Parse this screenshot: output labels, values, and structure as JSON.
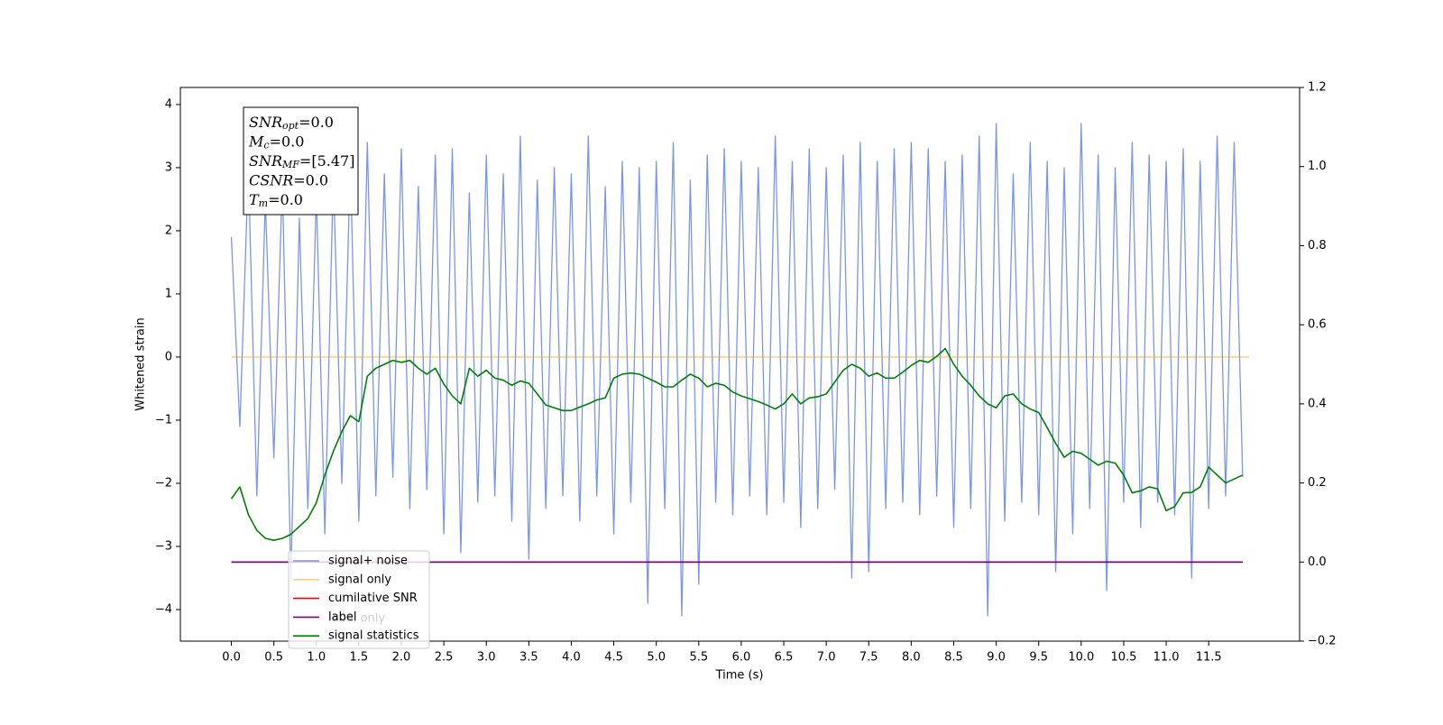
{
  "chart_data": {
    "type": "line",
    "x_label": "Time (s)",
    "y_label": "Whitened strain",
    "xlim": [
      -0.6,
      12.57
    ],
    "ylim": [
      -4.5,
      4.27
    ],
    "y2lim": [
      -0.2,
      1.2
    ],
    "xticks": [
      {
        "value": 0,
        "label": "0.0"
      },
      0.5,
      {
        "value": 1,
        "label": "1.0"
      },
      1.5,
      {
        "value": 2,
        "label": "2.0"
      },
      2.5,
      {
        "value": 3,
        "label": "3.0"
      },
      3.5,
      {
        "value": 4,
        "label": "4.0"
      },
      4.5,
      {
        "value": 5,
        "label": "5.0"
      },
      5.5,
      {
        "value": 6,
        "label": "6.0"
      },
      6.5,
      {
        "value": 7,
        "label": "7.0"
      },
      7.5,
      {
        "value": 8,
        "label": "8.0"
      },
      8.5,
      {
        "value": 9,
        "label": "9.0"
      },
      9.5,
      {
        "value": 10,
        "label": "10.0"
      },
      10.5,
      {
        "value": 11,
        "label": "11.0"
      },
      11.5
    ],
    "yticks": [
      {
        "value": -4,
        "label": "−4"
      },
      {
        "value": -3,
        "label": "−3"
      },
      {
        "value": -2,
        "label": "−2"
      },
      {
        "value": -1,
        "label": "−1"
      },
      0,
      1,
      2,
      3,
      4
    ],
    "y2ticks": [
      {
        "value": -0.2,
        "label": "−0.2"
      },
      {
        "value": 0,
        "label": "0.0"
      },
      0.2,
      0.4,
      0.6,
      0.8,
      {
        "value": 1,
        "label": "1.0"
      },
      1.2
    ],
    "grid": false,
    "legend_loc": "lower left",
    "x": [
      0,
      0.1,
      0.2,
      0.3,
      0.4,
      0.5,
      0.6,
      0.7,
      0.8,
      0.9,
      1,
      1.1,
      1.2,
      1.3,
      1.4,
      1.5,
      1.6,
      1.7,
      1.8,
      1.9,
      2,
      2.1,
      2.2,
      2.3,
      2.4,
      2.5,
      2.6,
      2.7,
      2.8,
      2.9,
      3,
      3.1,
      3.2,
      3.3,
      3.4,
      3.5,
      3.6,
      3.7,
      3.8,
      3.9,
      4,
      4.1,
      4.2,
      4.3,
      4.4,
      4.5,
      4.6,
      4.7,
      4.8,
      4.9,
      5,
      5.1,
      5.2,
      5.3,
      5.4,
      5.5,
      5.6,
      5.7,
      5.8,
      5.9,
      6,
      6.1,
      6.2,
      6.3,
      6.4,
      6.5,
      6.6,
      6.7,
      6.8,
      6.9,
      7,
      7.1,
      7.2,
      7.3,
      7.4,
      7.5,
      7.6,
      7.7,
      7.8,
      7.9,
      8,
      8.1,
      8.2,
      8.3,
      8.4,
      8.5,
      8.6,
      8.7,
      8.8,
      8.9,
      9,
      9.1,
      9.2,
      9.3,
      9.4,
      9.5,
      9.6,
      9.7,
      9.8,
      9.9,
      10,
      10.1,
      10.2,
      10.3,
      10.4,
      10.5,
      10.6,
      10.7,
      10.8,
      10.9,
      11,
      11.1,
      11.2,
      11.3,
      11.4,
      11.5,
      11.6,
      11.7,
      11.8,
      11.9
    ],
    "series": [
      {
        "name": "signal+ noise",
        "color": "#4169e1",
        "alpha": 0.7,
        "axis": "y",
        "values": [
          1.9,
          -1.1,
          3.0,
          -2.2,
          2.5,
          -1.6,
          2.8,
          -3.5,
          2.2,
          -2.4,
          2.6,
          -2.8,
          2.9,
          -2.0,
          3.1,
          -2.6,
          3.4,
          -2.2,
          2.9,
          -1.9,
          3.3,
          -2.4,
          2.7,
          -2.1,
          3.2,
          -2.8,
          3.3,
          -3.1,
          2.6,
          -2.3,
          3.2,
          -2.2,
          2.9,
          -2.6,
          3.5,
          -3.2,
          2.8,
          -2.4,
          3.0,
          -2.2,
          2.9,
          -2.6,
          3.5,
          -2.2,
          2.7,
          -2.8,
          3.1,
          -2.3,
          3.0,
          -3.9,
          3.1,
          -2.4,
          3.4,
          -4.1,
          2.8,
          -3.6,
          3.2,
          -2.3,
          3.3,
          -2.5,
          3.1,
          -2.2,
          3.0,
          -2.5,
          3.5,
          -2.3,
          3.1,
          -2.7,
          3.3,
          -2.4,
          3.0,
          -2.1,
          3.2,
          -3.5,
          3.4,
          -3.4,
          3.1,
          -2.4,
          3.3,
          -2.3,
          3.4,
          -2.5,
          3.3,
          -2.2,
          3.1,
          -2.7,
          3.2,
          -2.4,
          3.5,
          -4.1,
          3.7,
          -2.6,
          2.9,
          -2.3,
          3.4,
          -2.5,
          3.1,
          -3.4,
          3.0,
          -2.8,
          3.7,
          -2.4,
          3.2,
          -3.7,
          3.0,
          -2.3,
          3.4,
          -2.7,
          3.2,
          -2.3,
          3.1,
          -2.5,
          3.3,
          -3.5,
          3.1,
          -2.4,
          3.5,
          -2.2,
          3.4,
          -1.9
        ]
      },
      {
        "name": "signal only",
        "color": "#ffa500",
        "alpha": 0.5,
        "axis": "y",
        "x": [
          0,
          11.98
        ],
        "values": [
          0,
          0
        ]
      },
      {
        "name": "cumilative SNR",
        "color": "#ff0000",
        "alpha": 1,
        "axis": "y2",
        "x": [
          0,
          11.9
        ],
        "values": [
          0,
          0
        ]
      },
      {
        "name": "label",
        "color": "#800080",
        "alpha": 1,
        "axis": "y2",
        "x": [
          0,
          11.9
        ],
        "values": [
          0,
          0
        ]
      },
      {
        "name": "signal statistics",
        "color": "#008000",
        "alpha": 1,
        "axis": "y2",
        "values": [
          0.16,
          0.19,
          0.12,
          0.08,
          0.06,
          0.055,
          0.06,
          0.07,
          0.09,
          0.11,
          0.15,
          0.22,
          0.28,
          0.33,
          0.37,
          0.355,
          0.47,
          0.49,
          0.5,
          0.51,
          0.505,
          0.51,
          0.49,
          0.475,
          0.49,
          0.45,
          0.42,
          0.4,
          0.49,
          0.47,
          0.485,
          0.465,
          0.46,
          0.447,
          0.458,
          0.452,
          0.425,
          0.397,
          0.39,
          0.383,
          0.383,
          0.392,
          0.4,
          0.41,
          0.415,
          0.465,
          0.475,
          0.478,
          0.475,
          0.465,
          0.455,
          0.443,
          0.443,
          0.46,
          0.475,
          0.465,
          0.443,
          0.452,
          0.447,
          0.43,
          0.42,
          0.413,
          0.406,
          0.397,
          0.387,
          0.4,
          0.425,
          0.4,
          0.415,
          0.418,
          0.425,
          0.455,
          0.485,
          0.5,
          0.49,
          0.47,
          0.478,
          0.465,
          0.465,
          0.48,
          0.497,
          0.51,
          0.505,
          0.52,
          0.54,
          0.5,
          0.47,
          0.447,
          0.42,
          0.4,
          0.39,
          0.42,
          0.425,
          0.4,
          0.387,
          0.378,
          0.34,
          0.3,
          0.265,
          0.28,
          0.275,
          0.26,
          0.245,
          0.255,
          0.25,
          0.22,
          0.175,
          0.18,
          0.19,
          0.185,
          0.13,
          0.14,
          0.175,
          0.176,
          0.19,
          0.24,
          0.22,
          0.2,
          0.21,
          0.22
        ]
      }
    ],
    "info_box": [
      {
        "base": "SNR",
        "sub": "opt",
        "text": "=0.0"
      },
      {
        "base": "M",
        "sub": "c",
        "text": "=0.0"
      },
      {
        "base": "SNR",
        "sub": "MF",
        "text": "=[5.47]"
      },
      {
        "base": "CSNR",
        "sub": null,
        "text": "=0.0"
      },
      {
        "base": "T",
        "sub": "m",
        "text": "=0.0"
      }
    ],
    "hidden_text": "label only"
  }
}
